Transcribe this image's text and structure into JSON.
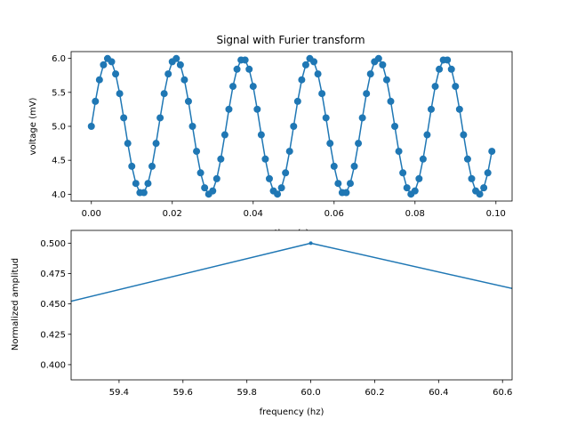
{
  "figure": {
    "title": "Signal with Furier transform"
  },
  "chart_data": [
    {
      "type": "line",
      "title": "Signal with Furier transform",
      "xlabel": "time (s)",
      "ylabel": "voltage (mV)",
      "xlim": [
        -0.005,
        0.104
      ],
      "ylim": [
        3.9,
        6.1
      ],
      "xticks": [
        "0.00",
        "0.02",
        "0.04",
        "0.06",
        "0.08",
        "0.10"
      ],
      "xtick_values": [
        0.0,
        0.02,
        0.04,
        0.06,
        0.08,
        0.1
      ],
      "yticks": [
        "4.0",
        "4.5",
        "5.0",
        "5.5",
        "6.0"
      ],
      "ytick_values": [
        4.0,
        4.5,
        5.0,
        5.5,
        6.0
      ],
      "markers": true,
      "color": "#1f77b4",
      "series": [
        {
          "x": [
            0.0,
            0.001,
            0.002,
            0.003,
            0.004,
            0.005,
            0.006,
            0.007,
            0.008,
            0.009,
            0.01,
            0.011,
            0.012,
            0.013,
            0.014,
            0.015,
            0.016,
            0.017,
            0.018,
            0.019,
            0.02,
            0.021,
            0.022,
            0.023,
            0.024,
            0.025,
            0.026,
            0.027,
            0.028,
            0.029,
            0.03,
            0.031,
            0.032,
            0.033,
            0.034,
            0.035,
            0.036,
            0.037,
            0.038,
            0.039,
            0.04,
            0.041,
            0.042,
            0.043,
            0.044,
            0.045,
            0.046,
            0.047,
            0.048,
            0.049,
            0.05,
            0.051,
            0.052,
            0.053,
            0.054,
            0.055,
            0.056,
            0.057,
            0.058,
            0.059,
            0.06,
            0.061,
            0.062,
            0.063,
            0.064,
            0.065,
            0.066,
            0.067,
            0.068,
            0.069,
            0.07,
            0.071,
            0.072,
            0.073,
            0.074,
            0.075,
            0.076,
            0.077,
            0.078,
            0.079,
            0.08,
            0.081,
            0.082,
            0.083,
            0.084,
            0.085,
            0.086,
            0.087,
            0.088,
            0.089,
            0.09,
            0.091,
            0.092,
            0.093,
            0.094,
            0.095,
            0.096,
            0.097,
            0.098,
            0.099
          ],
          "y": [
            5.0,
            5.368,
            5.685,
            5.905,
            5.998,
            5.951,
            5.771,
            5.482,
            5.125,
            4.749,
            4.412,
            4.159,
            4.024,
            4.024,
            4.159,
            4.412,
            4.749,
            5.125,
            5.482,
            5.771,
            5.951,
            5.998,
            5.905,
            5.685,
            5.368,
            5.0,
            4.632,
            4.315,
            4.095,
            4.002,
            4.049,
            4.229,
            4.518,
            4.875,
            5.251,
            5.588,
            5.841,
            5.976,
            5.976,
            5.841,
            5.588,
            5.251,
            4.875,
            4.518,
            4.229,
            4.049,
            4.002,
            4.095,
            4.315,
            4.632,
            5.0,
            5.368,
            5.685,
            5.905,
            5.998,
            5.951,
            5.771,
            5.482,
            5.125,
            4.749,
            4.412,
            4.159,
            4.024,
            4.024,
            4.159,
            4.412,
            4.749,
            5.125,
            5.482,
            5.771,
            5.951,
            5.998,
            5.905,
            5.685,
            5.368,
            5.0,
            4.632,
            4.315,
            4.095,
            4.002,
            4.049,
            4.229,
            4.518,
            4.875,
            5.251,
            5.588,
            5.841,
            5.976,
            5.976,
            5.841,
            5.588,
            5.251,
            4.875,
            4.518,
            4.229,
            4.049,
            4.002,
            4.095,
            4.315,
            4.632
          ]
        }
      ]
    },
    {
      "type": "line",
      "title": "",
      "xlabel": "frequency (hz)",
      "ylabel": "Normalized amplitud",
      "xlim": [
        59.25,
        60.63
      ],
      "ylim": [
        0.3875,
        0.5105
      ],
      "xticks": [
        "59.4",
        "59.6",
        "59.8",
        "60.0",
        "60.2",
        "60.4",
        "60.6"
      ],
      "xtick_values": [
        59.4,
        59.6,
        59.8,
        60.0,
        60.2,
        60.4,
        60.6
      ],
      "yticks": [
        "0.400",
        "0.425",
        "0.450",
        "0.475",
        "0.500"
      ],
      "ytick_values": [
        0.4,
        0.425,
        0.45,
        0.475,
        0.5
      ],
      "color": "#1f77b4",
      "series": [
        {
          "x": [
            59.0,
            60.0,
            61.0
          ],
          "y": [
            0.4363,
            0.5,
            0.4408
          ]
        }
      ]
    }
  ]
}
